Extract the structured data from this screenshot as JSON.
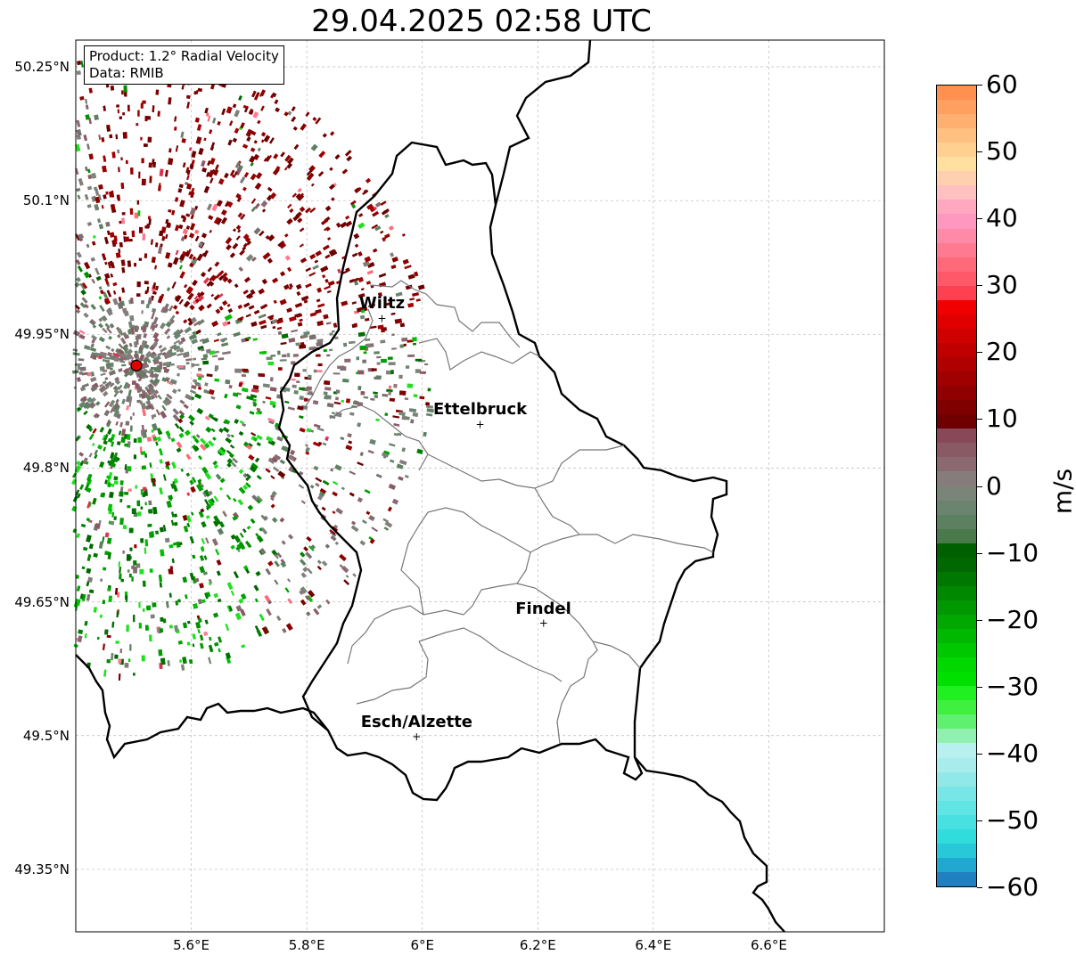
{
  "title": "29.04.2025 02:58 UTC",
  "info_box": {
    "product_line": "Product: 1.2° Radial Velocity",
    "data_line": "Data: RMIB"
  },
  "map": {
    "lat_range": [
      49.28,
      50.28
    ],
    "lon_range": [
      5.4,
      6.8
    ],
    "lat_ticks": [
      "50.25°N",
      "50.1°N",
      "49.95°N",
      "49.8°N",
      "49.65°N",
      "49.5°N",
      "49.35°N"
    ],
    "lon_ticks": [
      "5.6°E",
      "5.8°E",
      "6°E",
      "6.2°E",
      "6.4°E",
      "6.6°E"
    ],
    "grid": true,
    "radar_site": {
      "lon": 5.505,
      "lat": 49.915,
      "color": "#e00000"
    },
    "cities": [
      {
        "name": "Wiltz",
        "lon": 5.93,
        "lat": 49.968
      },
      {
        "name": "Ettelbruck",
        "lon": 6.1,
        "lat": 49.849
      },
      {
        "name": "Findel",
        "lon": 6.21,
        "lat": 49.626
      },
      {
        "name": "Esch/Alzette",
        "lon": 5.99,
        "lat": 49.499
      }
    ]
  },
  "colorbar": {
    "unit": "m/s",
    "range": [
      -60,
      60
    ],
    "tick_labels": [
      "60",
      "50",
      "40",
      "30",
      "20",
      "10",
      "0",
      "−10",
      "−20",
      "−30",
      "−40",
      "−50",
      "−60"
    ],
    "colors": [
      "#2080c0",
      "#20a8d0",
      "#28c8d8",
      "#30dcdc",
      "#48e0e0",
      "#60e4e4",
      "#78e6e6",
      "#90e8e8",
      "#a8ecec",
      "#b8f0f0",
      "#90f0b0",
      "#60f070",
      "#40f040",
      "#20f020",
      "#00e000",
      "#00d800",
      "#00c800",
      "#00b800",
      "#00a800",
      "#009800",
      "#008800",
      "#007800",
      "#006800",
      "#006000",
      "#4a7a4a",
      "#5c8060",
      "#6a8470",
      "#7a8478",
      "#867c7c",
      "#8a6a70",
      "#8a5a64",
      "#884858",
      "#700000",
      "#800000",
      "#900000",
      "#a00000",
      "#b00000",
      "#c00000",
      "#d00000",
      "#e00000",
      "#f00000",
      "#ff4050",
      "#ff5868",
      "#ff6a7a",
      "#ff7a90",
      "#ff8aa8",
      "#ff98c0",
      "#ffa8c0",
      "#ffc0c0",
      "#ffd0b0",
      "#ffe0a0",
      "#ffd090",
      "#ffc080",
      "#ffb070",
      "#ffa060",
      "#ff9050"
    ]
  }
}
